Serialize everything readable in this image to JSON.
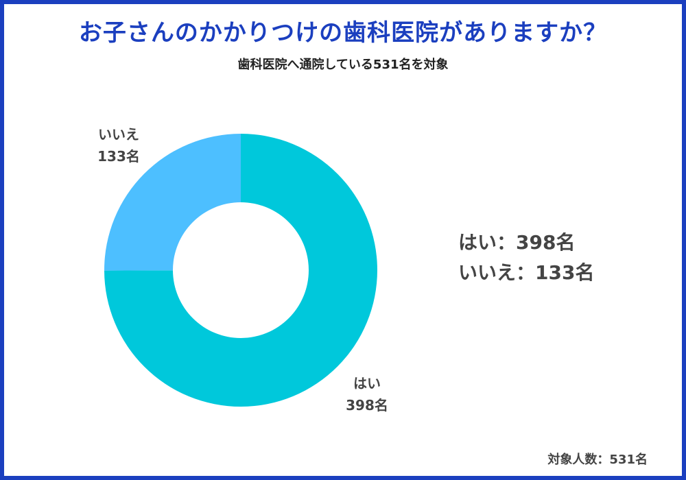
{
  "header": {
    "title": "お子さんのかかりつけの歯科医院がありますか？",
    "subtitle": "歯科医院へ通院している531名を対象"
  },
  "labels": {
    "yes_name": "はい",
    "yes_count": "398名",
    "no_name": "いいえ",
    "no_count": "133名"
  },
  "legend": {
    "yes": "はい：398名",
    "no": "いいえ：133名"
  },
  "footer": {
    "total": "対象人数：531名"
  },
  "colors": {
    "frame": "#1b3fbf",
    "title": "#1b3fbf",
    "yes": "#00c8db",
    "no": "#4dbfff"
  },
  "chart_data": {
    "type": "pie",
    "donut": true,
    "categories": [
      "はい",
      "いいえ"
    ],
    "values": [
      398,
      133
    ],
    "total": 531,
    "colors": [
      "#00c8db",
      "#4dbfff"
    ],
    "start": "top",
    "direction": "clockwise"
  }
}
